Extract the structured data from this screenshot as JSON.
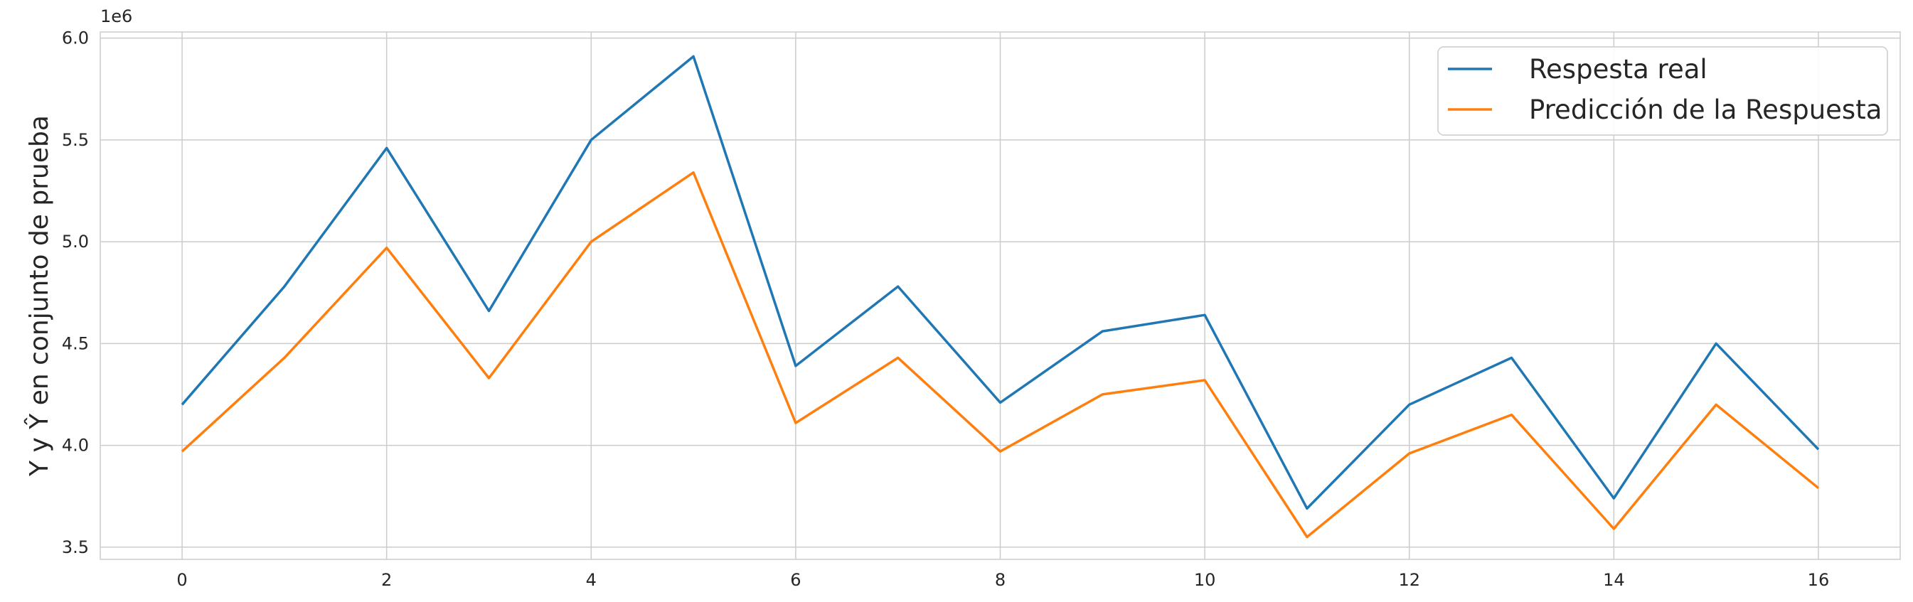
{
  "chart_data": {
    "type": "line",
    "title": "",
    "xlabel": "",
    "ylabel": "Y y Ŷ en conjunto de prueba",
    "y_offset_label": "1e6",
    "x": [
      0,
      1,
      2,
      3,
      4,
      5,
      6,
      7,
      8,
      9,
      10,
      11,
      12,
      13,
      14,
      15,
      16
    ],
    "xlim": [
      -0.8,
      16.8
    ],
    "ylim": [
      3.44,
      6.03
    ],
    "x_ticks": [
      0,
      2,
      4,
      6,
      8,
      10,
      12,
      14,
      16
    ],
    "y_ticks": [
      3.5,
      4.0,
      4.5,
      5.0,
      5.5,
      6.0
    ],
    "y_tick_labels": [
      "3.5",
      "4.0",
      "4.5",
      "5.0",
      "5.5",
      "6.0"
    ],
    "grid": true,
    "legend_position": "upper right",
    "series": [
      {
        "name": "Respesta real",
        "color": "#1f77b4",
        "values": [
          4.2,
          4.78,
          5.46,
          4.66,
          5.5,
          5.91,
          4.39,
          4.78,
          4.21,
          4.56,
          4.64,
          3.69,
          4.2,
          4.43,
          3.74,
          4.5,
          3.98
        ]
      },
      {
        "name": "Predicción de la Respuesta",
        "color": "#ff7f0e",
        "values": [
          3.97,
          4.43,
          4.97,
          4.33,
          5.0,
          5.34,
          4.11,
          4.43,
          3.97,
          4.25,
          4.32,
          3.55,
          3.96,
          4.15,
          3.59,
          4.2,
          3.79
        ]
      }
    ]
  }
}
